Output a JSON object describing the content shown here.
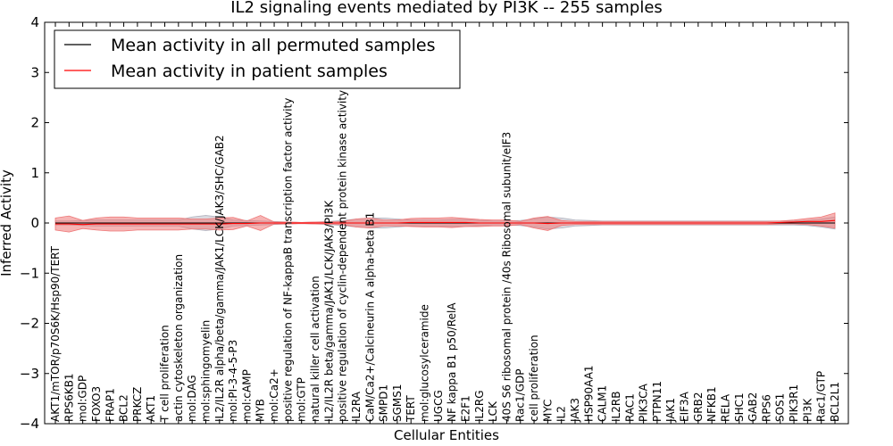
{
  "chart_data": {
    "type": "line",
    "title": "IL2 signaling events mediated by PI3K -- 255 samples",
    "xlabel": "Cellular Entities",
    "ylabel": "Inferred Activity",
    "ylim": [
      -4,
      4
    ],
    "yticks": [
      4,
      3,
      2,
      1,
      0,
      -1,
      -2,
      -3,
      -4
    ],
    "legend_position": "top-left",
    "colors": {
      "permuted": "#000000",
      "patient": "#ff0000",
      "patient_band": "#ee7777",
      "permuted_band": "#b0b0bc"
    },
    "categories": [
      "AKT1/mTOR/p70S6K/Hsp90/TERT",
      "RPS6KB1",
      "mol:GDP",
      "FOXO3",
      "FRAP1",
      "BCL2",
      "PRKCZ",
      "AKT1",
      "T cell proliferation",
      "actin cytoskeleton organization",
      "mol:DAG",
      "mol:sphingomyelin",
      "IL2/IL2R alpha/beta/gamma/JAK1/LCK/JAK3/SHC/GAB2",
      "mol:PI-3-4-5-P3",
      "mol:cAMP",
      "MYB",
      "mol:Ca2+",
      "positive regulation of NF-kappaB transcription factor activity",
      "mol:GTP",
      "natural killer cell activation",
      "IL2/IL2R beta/gamma/JAK1/LCK/JAK3/PI3K",
      "positive regulation of cyclin-dependent protein kinase activity",
      "IL2RA",
      "CaM/Ca2+/Calcineurin A alpha-beta B1",
      "SMPD1",
      "SGMS1",
      "TERT",
      "mol:glucosylceramide",
      "UGCG",
      "NF kappa B1 p50/RelA",
      "E2F1",
      "IL2RG",
      "LCK",
      "40S S6 ribosomal protein /40s Ribosomal subunit/eIF3",
      "Rac1/GDP",
      "cell proliferation",
      "MYC",
      "IL2",
      "JAK3",
      "HSP90AA1",
      "CALM1",
      "IL2RB",
      "RAC1",
      "PIK3CA",
      "PTPN11",
      "JAK1",
      "EIF3A",
      "GRB2",
      "NFKB1",
      "RELA",
      "SHC1",
      "GAB2",
      "RPS6",
      "SOS1",
      "PIK3R1",
      "PI3K",
      "Rac1/GTP",
      "BCL2L1"
    ],
    "series": [
      {
        "name": "Mean activity in all permuted samples",
        "values": [
          0,
          0,
          0,
          0,
          0,
          0,
          0,
          0,
          0,
          0,
          0,
          0,
          0,
          0,
          0,
          0,
          0,
          0,
          0,
          0,
          0,
          0,
          0,
          0,
          0,
          0,
          0,
          0,
          0,
          0,
          0,
          0,
          0,
          0,
          0,
          0,
          0,
          0,
          0,
          0,
          0,
          0,
          0,
          0,
          0,
          0,
          0,
          0,
          0,
          0,
          0,
          0,
          0,
          0,
          0,
          0,
          0,
          0
        ],
        "band": [
          0.04,
          0.04,
          0.05,
          0.06,
          0.06,
          0.06,
          0.06,
          0.06,
          0.06,
          0.06,
          0.12,
          0.15,
          0.12,
          0.06,
          0.05,
          0.04,
          0.03,
          0.02,
          0.01,
          0.02,
          0.03,
          0.05,
          0.08,
          0.1,
          0.1,
          0.08,
          0.06,
          0.06,
          0.06,
          0.07,
          0.07,
          0.05,
          0.04,
          0.04,
          0.05,
          0.08,
          0.12,
          0.1,
          0.06,
          0.05,
          0.04,
          0.04,
          0.04,
          0.04,
          0.04,
          0.04,
          0.04,
          0.04,
          0.04,
          0.04,
          0.04,
          0.04,
          0.04,
          0.04,
          0.04,
          0.05,
          0.08,
          0.12
        ]
      },
      {
        "name": "Mean activity in patient samples",
        "values": [
          -0.02,
          -0.02,
          -0.03,
          -0.02,
          -0.02,
          -0.02,
          -0.02,
          -0.02,
          -0.02,
          -0.02,
          -0.02,
          -0.02,
          -0.02,
          -0.01,
          -0.01,
          0,
          0,
          0,
          0,
          0,
          0,
          0,
          0,
          0,
          0,
          0,
          0.01,
          0.01,
          0.01,
          0.01,
          0.01,
          0,
          0,
          0,
          0,
          0,
          -0.01,
          0,
          0,
          0,
          0,
          0,
          0,
          0,
          0,
          0,
          0,
          0,
          0,
          0,
          0,
          0,
          0,
          0.01,
          0.02,
          0.03,
          0.03,
          0.05
        ],
        "band": [
          0.12,
          0.16,
          0.08,
          0.12,
          0.14,
          0.14,
          0.12,
          0.12,
          0.12,
          0.12,
          0.1,
          0.1,
          0.12,
          0.12,
          0.05,
          0.15,
          0.02,
          0.02,
          0.01,
          0.02,
          0.02,
          0.03,
          0.08,
          0.1,
          0.06,
          0.06,
          0.08,
          0.09,
          0.09,
          0.1,
          0.08,
          0.07,
          0.06,
          0.06,
          0.03,
          0.1,
          0.14,
          0.05,
          0.03,
          0.03,
          0.03,
          0.03,
          0.03,
          0.03,
          0.03,
          0.03,
          0.03,
          0.03,
          0.03,
          0.03,
          0.03,
          0.03,
          0.03,
          0.03,
          0.04,
          0.06,
          0.09,
          0.15
        ]
      }
    ]
  }
}
